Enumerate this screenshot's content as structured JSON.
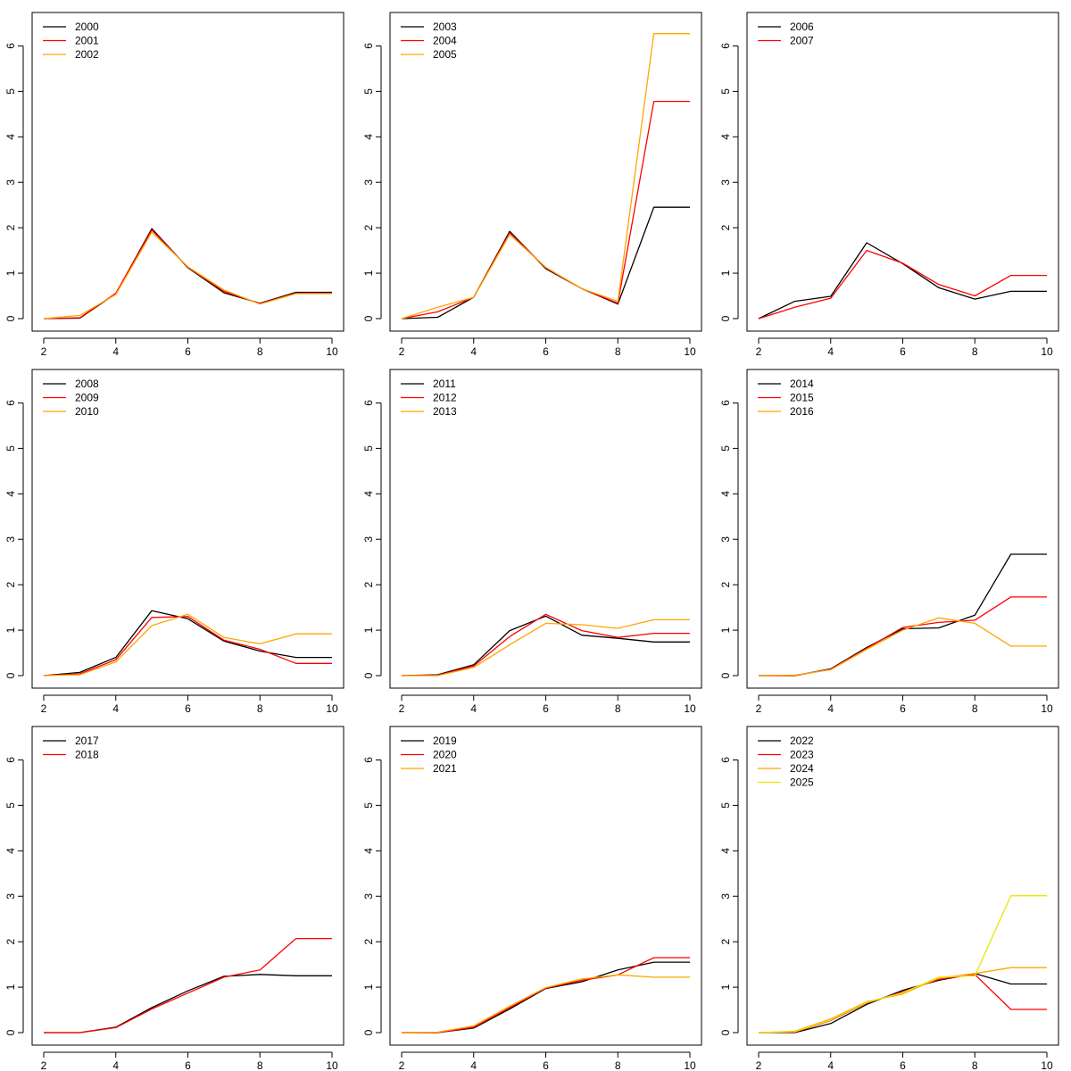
{
  "chart_data": [
    {
      "type": "line",
      "x": [
        2,
        3,
        4,
        5,
        6,
        7,
        8,
        9,
        10
      ],
      "xticks": [
        2,
        4,
        6,
        8,
        10
      ],
      "yticks": [
        0,
        1,
        2,
        3,
        4,
        5,
        6
      ],
      "xlim": [
        2,
        10
      ],
      "ylim": [
        0,
        6.5
      ],
      "legend_position": "top-left",
      "series": [
        {
          "name": "2000",
          "color": "#000000",
          "values": [
            0,
            0.01,
            0.55,
            1.98,
            1.12,
            0.57,
            0.34,
            0.58,
            0.58
          ]
        },
        {
          "name": "2001",
          "color": "#ff0000",
          "values": [
            0,
            0.02,
            0.56,
            1.95,
            1.13,
            0.6,
            0.33,
            0.56,
            0.56
          ]
        },
        {
          "name": "2002",
          "color": "#ffa500",
          "values": [
            0,
            0.07,
            0.53,
            1.9,
            1.14,
            0.63,
            0.32,
            0.55,
            0.55
          ]
        }
      ]
    },
    {
      "type": "line",
      "x": [
        2,
        3,
        4,
        5,
        6,
        7,
        8,
        9,
        10
      ],
      "xticks": [
        2,
        4,
        6,
        8,
        10
      ],
      "yticks": [
        0,
        1,
        2,
        3,
        4,
        5,
        6
      ],
      "xlim": [
        2,
        10
      ],
      "ylim": [
        0,
        6.5
      ],
      "legend_position": "top-left",
      "series": [
        {
          "name": "2003",
          "color": "#000000",
          "values": [
            0,
            0.03,
            0.47,
            1.92,
            1.1,
            0.66,
            0.32,
            2.45,
            2.45
          ]
        },
        {
          "name": "2004",
          "color": "#ff0000",
          "values": [
            0,
            0.15,
            0.47,
            1.89,
            1.12,
            0.66,
            0.34,
            4.78,
            4.78
          ]
        },
        {
          "name": "2005",
          "color": "#ffa500",
          "values": [
            0,
            0.25,
            0.47,
            1.85,
            1.13,
            0.66,
            0.38,
            6.27,
            6.27
          ]
        }
      ]
    },
    {
      "type": "line",
      "x": [
        2,
        3,
        4,
        5,
        6,
        7,
        8,
        9,
        10
      ],
      "xticks": [
        2,
        4,
        6,
        8,
        10
      ],
      "yticks": [
        0,
        1,
        2,
        3,
        4,
        5,
        6
      ],
      "xlim": [
        2,
        10
      ],
      "ylim": [
        0,
        6.5
      ],
      "legend_position": "top-left",
      "series": [
        {
          "name": "2006",
          "color": "#000000",
          "values": [
            0,
            0.38,
            0.49,
            1.67,
            1.21,
            0.68,
            0.43,
            0.6,
            0.6
          ]
        },
        {
          "name": "2007",
          "color": "#ff0000",
          "values": [
            0,
            0.25,
            0.45,
            1.5,
            1.22,
            0.75,
            0.5,
            0.95,
            0.95
          ]
        }
      ]
    },
    {
      "type": "line",
      "x": [
        2,
        3,
        4,
        5,
        6,
        7,
        8,
        9,
        10
      ],
      "xticks": [
        2,
        4,
        6,
        8,
        10
      ],
      "yticks": [
        0,
        1,
        2,
        3,
        4,
        5,
        6
      ],
      "xlim": [
        2,
        10
      ],
      "ylim": [
        0,
        6.5
      ],
      "legend_position": "top-left",
      "series": [
        {
          "name": "2008",
          "color": "#000000",
          "values": [
            0,
            0.07,
            0.4,
            1.43,
            1.25,
            0.76,
            0.54,
            0.4,
            0.4
          ]
        },
        {
          "name": "2009",
          "color": "#ff0000",
          "values": [
            0,
            0.04,
            0.35,
            1.28,
            1.3,
            0.78,
            0.58,
            0.27,
            0.27
          ]
        },
        {
          "name": "2010",
          "color": "#ffa500",
          "values": [
            0,
            0.02,
            0.3,
            1.1,
            1.35,
            0.84,
            0.7,
            0.92,
            0.92
          ]
        }
      ]
    },
    {
      "type": "line",
      "x": [
        2,
        3,
        4,
        5,
        6,
        7,
        8,
        9,
        10
      ],
      "xticks": [
        2,
        4,
        6,
        8,
        10
      ],
      "yticks": [
        0,
        1,
        2,
        3,
        4,
        5,
        6
      ],
      "xlim": [
        2,
        10
      ],
      "ylim": [
        0,
        6.5
      ],
      "legend_position": "top-left",
      "series": [
        {
          "name": "2011",
          "color": "#000000",
          "values": [
            0,
            0.02,
            0.24,
            0.99,
            1.31,
            0.89,
            0.82,
            0.74,
            0.74
          ]
        },
        {
          "name": "2012",
          "color": "#ff0000",
          "values": [
            0,
            0.01,
            0.21,
            0.86,
            1.35,
            0.99,
            0.84,
            0.93,
            0.93
          ]
        },
        {
          "name": "2013",
          "color": "#ffa500",
          "values": [
            0,
            0,
            0.18,
            0.68,
            1.15,
            1.12,
            1.04,
            1.23,
            1.23
          ]
        }
      ]
    },
    {
      "type": "line",
      "x": [
        2,
        3,
        4,
        5,
        6,
        7,
        8,
        9,
        10
      ],
      "xticks": [
        2,
        4,
        6,
        8,
        10
      ],
      "yticks": [
        0,
        1,
        2,
        3,
        4,
        5,
        6
      ],
      "xlim": [
        2,
        10
      ],
      "ylim": [
        0,
        6.5
      ],
      "legend_position": "top-left",
      "series": [
        {
          "name": "2014",
          "color": "#000000",
          "values": [
            0,
            0,
            0.15,
            0.62,
            1.03,
            1.05,
            1.33,
            2.67,
            2.67
          ]
        },
        {
          "name": "2015",
          "color": "#ff0000",
          "values": [
            0,
            0,
            0.14,
            0.6,
            1.06,
            1.17,
            1.22,
            1.73,
            1.73
          ]
        },
        {
          "name": "2016",
          "color": "#ffa500",
          "values": [
            0,
            0.01,
            0.13,
            0.58,
            1.0,
            1.27,
            1.15,
            0.65,
            0.65
          ]
        }
      ]
    },
    {
      "type": "line",
      "x": [
        2,
        3,
        4,
        5,
        6,
        7,
        8,
        9,
        10
      ],
      "xticks": [
        2,
        4,
        6,
        8,
        10
      ],
      "yticks": [
        0,
        1,
        2,
        3,
        4,
        5,
        6
      ],
      "xlim": [
        2,
        10
      ],
      "ylim": [
        0,
        6.5
      ],
      "legend_position": "top-left",
      "series": [
        {
          "name": "2017",
          "color": "#000000",
          "values": [
            0,
            0,
            0.12,
            0.55,
            0.92,
            1.24,
            1.28,
            1.25,
            1.25
          ]
        },
        {
          "name": "2018",
          "color": "#ff0000",
          "values": [
            0,
            0,
            0.11,
            0.52,
            0.87,
            1.22,
            1.38,
            2.07,
            2.07
          ]
        }
      ]
    },
    {
      "type": "line",
      "x": [
        2,
        3,
        4,
        5,
        6,
        7,
        8,
        9,
        10
      ],
      "xticks": [
        2,
        4,
        6,
        8,
        10
      ],
      "yticks": [
        0,
        1,
        2,
        3,
        4,
        5,
        6
      ],
      "xlim": [
        2,
        10
      ],
      "ylim": [
        0,
        6.5
      ],
      "legend_position": "top-left",
      "series": [
        {
          "name": "2019",
          "color": "#000000",
          "values": [
            0,
            0,
            0.1,
            0.52,
            0.97,
            1.12,
            1.38,
            1.55,
            1.55
          ]
        },
        {
          "name": "2020",
          "color": "#ff0000",
          "values": [
            0,
            0,
            0.12,
            0.55,
            0.98,
            1.15,
            1.27,
            1.65,
            1.65
          ]
        },
        {
          "name": "2021",
          "color": "#ffa500",
          "values": [
            0,
            0.01,
            0.15,
            0.58,
            0.99,
            1.18,
            1.27,
            1.22,
            1.22
          ]
        }
      ]
    },
    {
      "type": "line",
      "x": [
        2,
        3,
        4,
        5,
        6,
        7,
        8,
        9,
        10
      ],
      "xticks": [
        2,
        4,
        6,
        8,
        10
      ],
      "yticks": [
        0,
        1,
        2,
        3,
        4,
        5,
        6
      ],
      "xlim": [
        2,
        10
      ],
      "ylim": [
        0,
        6.5
      ],
      "legend_position": "top-left",
      "series": [
        {
          "name": "2022",
          "color": "#000000",
          "values": [
            0,
            0,
            0.2,
            0.62,
            0.93,
            1.15,
            1.3,
            1.07,
            1.07
          ]
        },
        {
          "name": "2023",
          "color": "#ff0000",
          "values": [
            0,
            0.01,
            0.27,
            0.65,
            0.9,
            1.17,
            1.28,
            0.51,
            0.51
          ]
        },
        {
          "name": "2024",
          "color": "#ffa500",
          "values": [
            0,
            0.03,
            0.3,
            0.68,
            0.85,
            1.2,
            1.3,
            1.43,
            1.43
          ]
        },
        {
          "name": "2025",
          "color": "#e8e800",
          "values": [
            0,
            0.02,
            0.28,
            0.66,
            0.88,
            1.22,
            1.25,
            3.01,
            3.01
          ]
        }
      ]
    }
  ]
}
